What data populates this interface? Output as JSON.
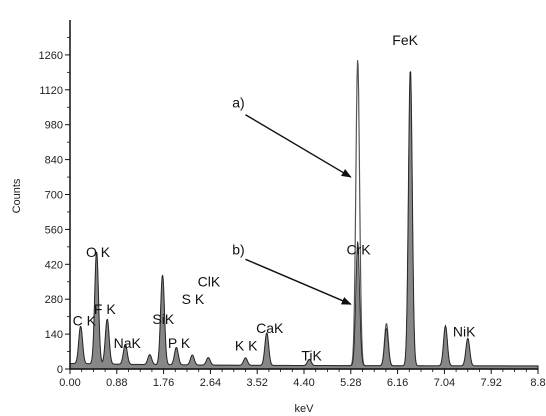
{
  "chart_data": {
    "type": "area",
    "title": "",
    "xlabel": "keV",
    "ylabel": "Counts",
    "xlim": [
      0.0,
      8.8
    ],
    "ylim": [
      0,
      1400
    ],
    "xticks": [
      0.0,
      0.88,
      1.76,
      2.64,
      3.52,
      4.4,
      5.28,
      6.16,
      7.04,
      7.92,
      8.8
    ],
    "xtick_labels": [
      "0.00",
      "0.88",
      "1.76",
      "2.64",
      "3.52",
      "4.40",
      "5.28",
      "6.16",
      "7.04",
      "7.92",
      "8.8"
    ],
    "yticks": [
      0,
      140,
      280,
      420,
      560,
      700,
      840,
      980,
      1120,
      1260
    ],
    "yticks_labels": [
      "0",
      "140",
      "280",
      "420",
      "560",
      "700",
      "840",
      "980",
      "1120",
      "1260"
    ],
    "grid": false,
    "colors": {
      "spectrum_a": "#555555",
      "spectrum_b": "#222222",
      "axis": "#111111"
    },
    "series": [
      {
        "peaks": [
          {
            "x": 0.2,
            "y": 150
          },
          {
            "x": 0.5,
            "y": 450
          },
          {
            "x": 0.7,
            "y": 180
          },
          {
            "x": 1.04,
            "y": 80
          },
          {
            "x": 1.5,
            "y": 40
          },
          {
            "x": 1.74,
            "y": 360
          },
          {
            "x": 2.0,
            "y": 70
          },
          {
            "x": 2.3,
            "y": 40
          },
          {
            "x": 2.6,
            "y": 30
          },
          {
            "x": 3.3,
            "y": 30
          },
          {
            "x": 3.7,
            "y": 130
          },
          {
            "x": 4.5,
            "y": 25
          },
          {
            "x": 5.41,
            "y": 1230
          },
          {
            "x": 5.95,
            "y": 170
          },
          {
            "x": 6.4,
            "y": 1190
          },
          {
            "x": 7.06,
            "y": 160
          },
          {
            "x": 7.48,
            "y": 110
          }
        ]
      },
      {
        "peaks": [
          {
            "x": 0.2,
            "y": 150
          },
          {
            "x": 0.5,
            "y": 450
          },
          {
            "x": 0.7,
            "y": 180
          },
          {
            "x": 1.04,
            "y": 80
          },
          {
            "x": 1.5,
            "y": 40
          },
          {
            "x": 1.74,
            "y": 360
          },
          {
            "x": 2.0,
            "y": 70
          },
          {
            "x": 2.3,
            "y": 40
          },
          {
            "x": 2.6,
            "y": 30
          },
          {
            "x": 3.3,
            "y": 30
          },
          {
            "x": 3.7,
            "y": 130
          },
          {
            "x": 4.5,
            "y": 25
          },
          {
            "x": 5.41,
            "y": 500
          },
          {
            "x": 5.95,
            "y": 150
          },
          {
            "x": 6.4,
            "y": 1190
          },
          {
            "x": 7.06,
            "y": 160
          },
          {
            "x": 7.48,
            "y": 110
          }
        ]
      }
    ],
    "annotations": [
      {
        "text": "C K",
        "x": 0.05,
        "y": 175
      },
      {
        "text": "O K",
        "x": 0.3,
        "y": 450
      },
      {
        "text": "F K",
        "x": 0.45,
        "y": 220
      },
      {
        "text": "NaK",
        "x": 0.82,
        "y": 85
      },
      {
        "text": "SiK",
        "x": 1.55,
        "y": 180
      },
      {
        "text": "P K",
        "x": 1.84,
        "y": 85
      },
      {
        "text": "S K",
        "x": 2.1,
        "y": 260
      },
      {
        "text": "ClK",
        "x": 2.4,
        "y": 330
      },
      {
        "text": "K K",
        "x": 3.1,
        "y": 75
      },
      {
        "text": "CaK",
        "x": 3.5,
        "y": 145
      },
      {
        "text": "TiK",
        "x": 4.35,
        "y": 35
      },
      {
        "text": "CrK",
        "x": 5.2,
        "y": 460
      },
      {
        "text": "FeK",
        "x": 6.06,
        "y": 1300
      },
      {
        "text": "NiK",
        "x": 7.2,
        "y": 130
      },
      {
        "text": "a)",
        "x": 3.05,
        "y": 1050
      },
      {
        "text": "b)",
        "x": 3.05,
        "y": 460
      }
    ],
    "arrows": [
      {
        "from": [
          3.3,
          1020
        ],
        "to": [
          5.28,
          770
        ]
      },
      {
        "from": [
          3.3,
          440
        ],
        "to": [
          5.28,
          260
        ]
      }
    ]
  }
}
